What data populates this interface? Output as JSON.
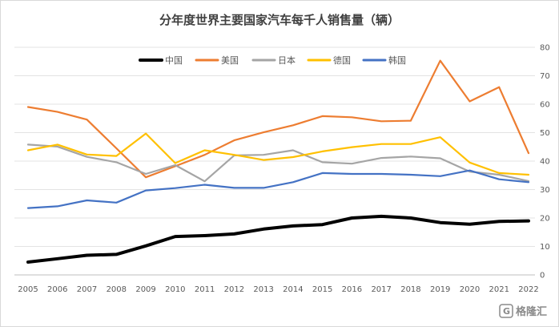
{
  "chart_data": {
    "type": "line",
    "title": "分年度世界主要国家汽车每千人销售量（辆）",
    "x": [
      "2005",
      "2006",
      "2007",
      "2008",
      "2009",
      "2010",
      "2011",
      "2012",
      "2013",
      "2014",
      "2015",
      "2016",
      "2017",
      "2018",
      "2019",
      "2020",
      "2021",
      "2022"
    ],
    "ylim": [
      0,
      80
    ],
    "yticks": [
      0,
      10,
      20,
      30,
      40,
      50,
      60,
      70,
      80
    ],
    "y_axis_position": "right",
    "grid": true,
    "legend_position": "top",
    "series": [
      {
        "name": "中国",
        "color": "#000000",
        "width": 4,
        "values": [
          4.5,
          5.7,
          6.9,
          7.2,
          10.2,
          13.5,
          13.8,
          14.4,
          16.1,
          17.2,
          17.7,
          20.0,
          20.6,
          20.0,
          18.4,
          17.8,
          18.8,
          19.0
        ]
      },
      {
        "name": "美国",
        "color": "#ED7D31",
        "width": 2.2,
        "values": [
          59.0,
          57.3,
          54.6,
          44.5,
          34.3,
          38.2,
          42.2,
          47.3,
          50.1,
          52.6,
          55.8,
          55.4,
          54.0,
          54.2,
          75.3,
          61.0,
          66.0,
          42.8
        ]
      },
      {
        "name": "日本",
        "color": "#A5A5A5",
        "width": 2.2,
        "values": [
          45.8,
          45.1,
          41.5,
          39.6,
          35.5,
          38.6,
          32.9,
          42.0,
          42.2,
          43.8,
          39.6,
          39.1,
          41.1,
          41.6,
          41.0,
          36.3,
          35.2,
          33.0
        ]
      },
      {
        "name": "德国",
        "color": "#FFC000",
        "width": 2.2,
        "values": [
          43.8,
          45.8,
          42.3,
          41.8,
          49.7,
          39.3,
          43.8,
          42.2,
          40.4,
          41.4,
          43.4,
          44.9,
          46.0,
          46.0,
          48.4,
          39.5,
          35.8,
          35.2
        ]
      },
      {
        "name": "韩国",
        "color": "#4472C4",
        "width": 2.2,
        "values": [
          23.5,
          24.1,
          26.2,
          25.4,
          29.7,
          30.5,
          31.7,
          30.6,
          30.6,
          32.6,
          35.8,
          35.5,
          35.5,
          35.2,
          34.7,
          36.7,
          33.6,
          32.6
        ]
      }
    ]
  },
  "watermark": {
    "icon": "gelonghui-logo-icon",
    "text": "格隆汇"
  }
}
